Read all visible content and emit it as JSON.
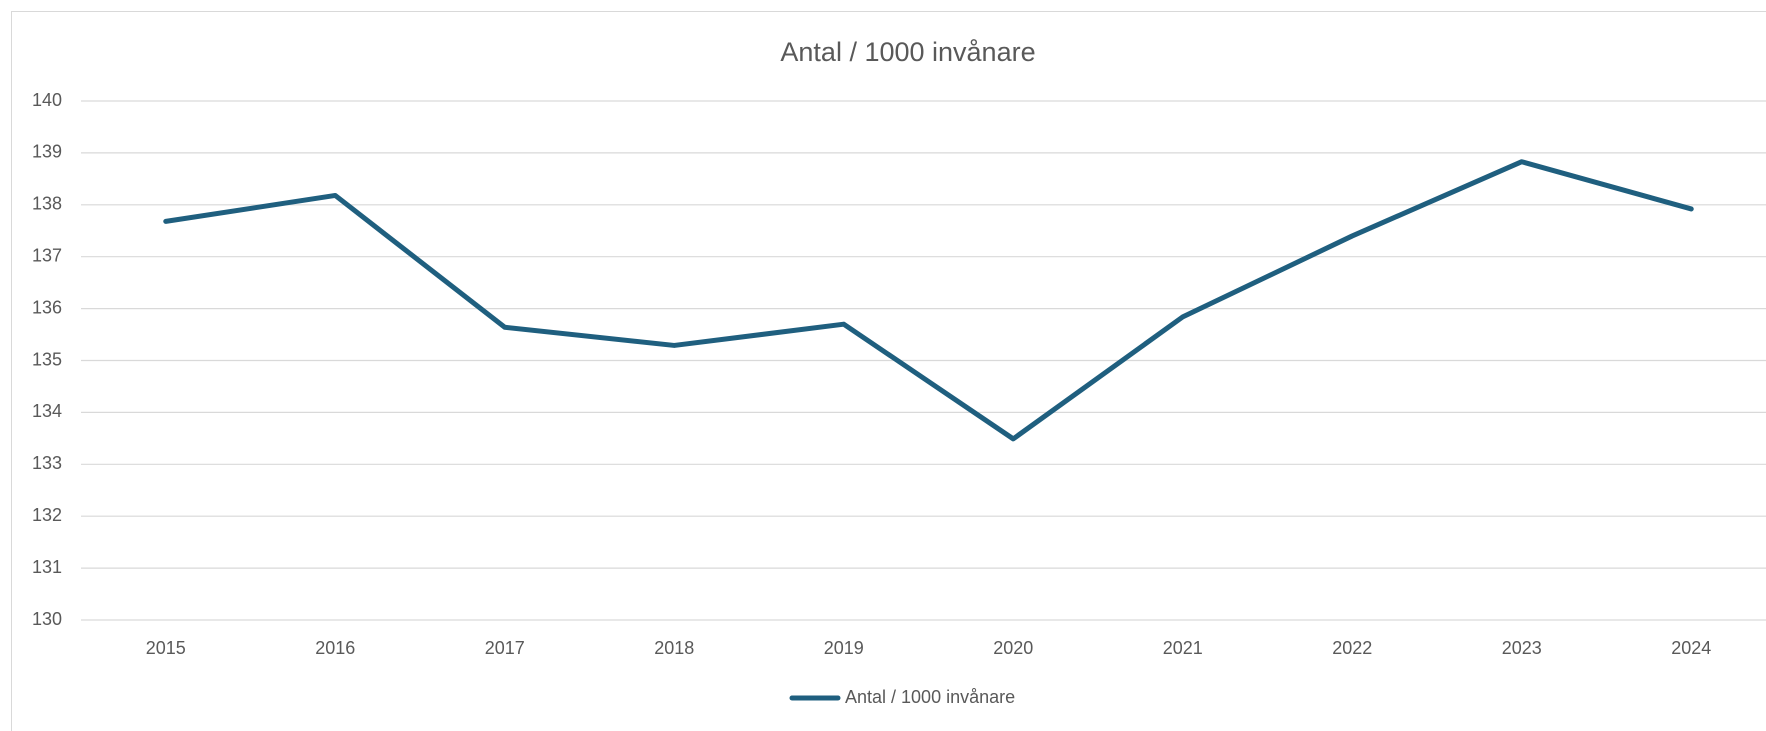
{
  "chart_data": {
    "type": "line",
    "title": "Antal / 1000 invånare",
    "categories": [
      "2015",
      "2016",
      "2017",
      "2018",
      "2019",
      "2020",
      "2021",
      "2022",
      "2023",
      "2024"
    ],
    "series": [
      {
        "name": "Antal / 1000 invånare",
        "color": "#1f5f7f",
        "values": [
          137.68,
          138.18,
          135.64,
          135.29,
          135.7,
          133.49,
          135.84,
          137.4,
          138.83,
          137.92
        ]
      }
    ],
    "ylim": [
      130,
      140
    ],
    "yticks": [
      130,
      131,
      132,
      133,
      134,
      135,
      136,
      137,
      138,
      139,
      140
    ],
    "grid": true,
    "legend": "bottom"
  }
}
